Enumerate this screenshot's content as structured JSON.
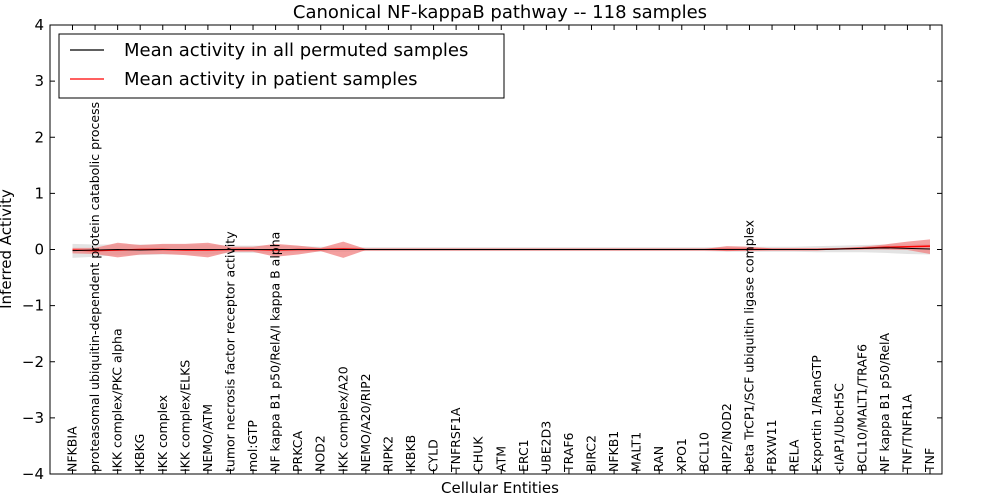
{
  "chart_data": {
    "type": "line",
    "title": "Canonical NF-kappaB pathway -- 118 samples",
    "xlabel": "Cellular Entities",
    "ylabel": "Inferred Activity",
    "ylim": [
      -4,
      4
    ],
    "yticks": [
      4,
      3,
      2,
      1,
      0,
      -1,
      -2,
      -3,
      -4
    ],
    "ytick_labels": [
      "4",
      "3",
      "2",
      "1",
      "0",
      "−1",
      "−2",
      "−3",
      "−4"
    ],
    "legend_position": "top-left",
    "categories": [
      "NFKBIA",
      "proteasomal ubiquitin-dependent protein catabolic process",
      "IKK complex/PKC alpha",
      "IKBKG",
      "IKK complex",
      "IKK complex/ELKS",
      "NEMO/ATM",
      "tumor necrosis factor receptor activity",
      "mol:GTP",
      "NF kappa B1 p50/RelA/I kappa B alpha",
      "PRKCA",
      "NOD2",
      "IKK complex/A20",
      "NEMO/A20/RIP2",
      "RIPK2",
      "IKBKB",
      "CYLD",
      "TNFRSF1A",
      "CHUK",
      "ATM",
      "ERC1",
      "UBE2D3",
      "TRAF6",
      "BIRC2",
      "NFKB1",
      "MALT1",
      "RAN",
      "XPO1",
      "BCL10",
      "RIP2/NOD2",
      "beta TrCP1/SCF ubiquitin ligase complex",
      "FBXW11",
      "RELA",
      "Exportin 1/RanGTP",
      "cIAP1/UbcH5C",
      "BCL10/MALT1/TRAF6",
      "NF kappa B1 p50/RelA",
      "TNF/TNFR1A",
      "TNF"
    ],
    "series": [
      {
        "name": "Mean activity in all permuted samples",
        "color": "#000000",
        "values": [
          -0.02,
          -0.01,
          0,
          -0.01,
          0,
          0,
          0,
          0,
          0,
          0,
          0,
          0,
          0,
          0,
          0,
          0,
          0,
          0,
          0,
          0,
          0,
          0,
          0,
          0,
          0,
          0,
          0,
          0,
          0,
          0,
          0,
          0,
          0,
          0,
          0.01,
          0.02,
          0.03,
          0.02,
          0.01
        ],
        "band_lower": [
          -0.15,
          -0.13,
          -0.1,
          -0.1,
          -0.09,
          -0.09,
          -0.09,
          -0.06,
          -0.06,
          -0.06,
          -0.05,
          -0.04,
          -0.04,
          -0.03,
          -0.03,
          -0.03,
          -0.03,
          -0.03,
          -0.03,
          -0.03,
          -0.03,
          -0.03,
          -0.03,
          -0.03,
          -0.03,
          -0.03,
          -0.03,
          -0.03,
          -0.03,
          -0.04,
          -0.04,
          -0.04,
          -0.04,
          -0.05,
          -0.05,
          -0.05,
          -0.06,
          -0.08,
          -0.09
        ],
        "band_upper": [
          0.1,
          0.09,
          0.09,
          0.09,
          0.09,
          0.09,
          0.09,
          0.07,
          0.07,
          0.07,
          0.06,
          0.05,
          0.05,
          0.04,
          0.04,
          0.04,
          0.04,
          0.04,
          0.04,
          0.04,
          0.04,
          0.04,
          0.04,
          0.04,
          0.04,
          0.04,
          0.04,
          0.04,
          0.04,
          0.05,
          0.05,
          0.05,
          0.05,
          0.06,
          0.07,
          0.08,
          0.09,
          0.09,
          0.1
        ],
        "band_color": "#cccccc"
      },
      {
        "name": "Mean activity in patient samples",
        "color": "#ff0000",
        "values": [
          -0.01,
          -0.02,
          -0.01,
          0,
          0,
          -0.01,
          -0.01,
          0,
          0,
          -0.01,
          0,
          0,
          0.01,
          0,
          0,
          0,
          0,
          0,
          0,
          0,
          0,
          0,
          0,
          0,
          0,
          0,
          0,
          0,
          0,
          0,
          0,
          0,
          0,
          0,
          0.01,
          0.02,
          0.04,
          0.05,
          0.06
        ],
        "band_lower": [
          -0.07,
          -0.08,
          -0.14,
          -0.09,
          -0.08,
          -0.1,
          -0.14,
          -0.04,
          -0.04,
          -0.13,
          -0.09,
          -0.03,
          -0.15,
          -0.01,
          -0.01,
          -0.01,
          -0.01,
          -0.01,
          -0.01,
          -0.01,
          -0.01,
          -0.01,
          -0.01,
          -0.01,
          -0.01,
          -0.01,
          -0.01,
          -0.01,
          -0.01,
          -0.03,
          -0.02,
          -0.01,
          -0.01,
          -0.01,
          0,
          0,
          0,
          -0.01,
          -0.08
        ],
        "band_upper": [
          0.03,
          0.03,
          0.12,
          0.08,
          0.1,
          0.1,
          0.12,
          0.05,
          0.05,
          0.1,
          0.07,
          0.03,
          0.14,
          0.01,
          0.01,
          0.01,
          0.01,
          0.01,
          0.01,
          0.01,
          0.01,
          0.01,
          0.01,
          0.01,
          0.01,
          0.01,
          0.01,
          0.01,
          0.01,
          0.06,
          0.05,
          0.02,
          0.02,
          0.02,
          0.03,
          0.05,
          0.09,
          0.14,
          0.18
        ],
        "band_color": "#f08080"
      }
    ]
  }
}
